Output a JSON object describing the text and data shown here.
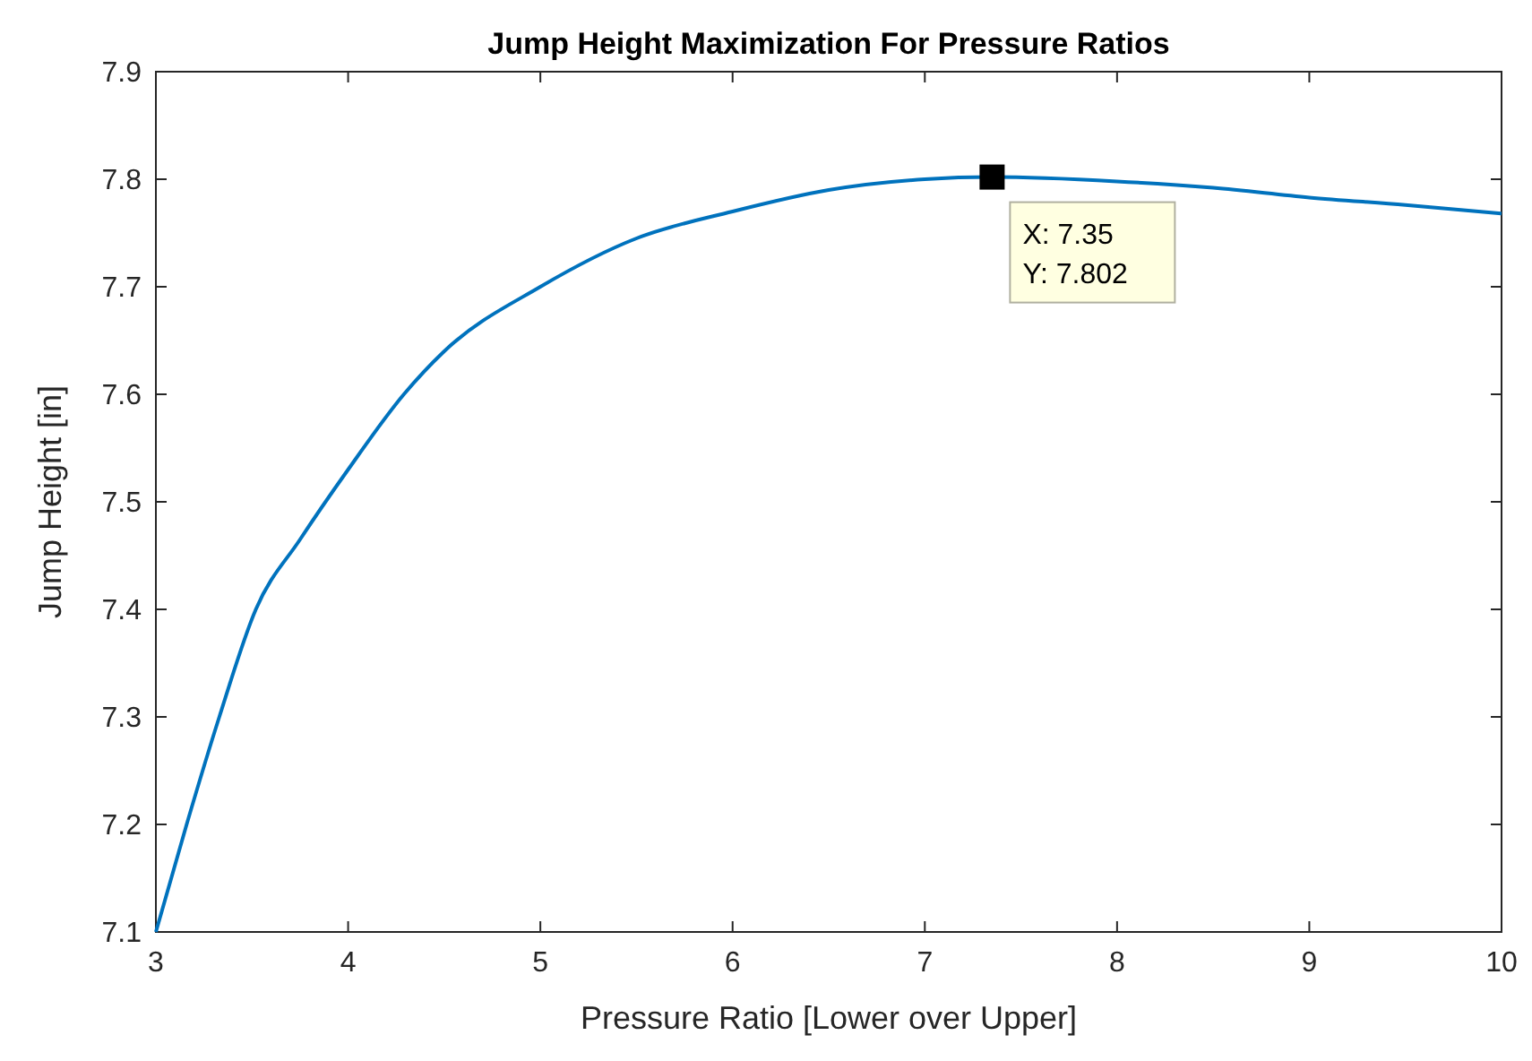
{
  "chart_data": {
    "type": "line",
    "title": "Jump Height Maximization For Pressure Ratios",
    "xlabel": "Pressure Ratio [Lower over Upper]",
    "ylabel": "Jump Height [in]",
    "x": [
      3,
      3.16,
      3.33,
      3.52,
      3.75,
      4,
      4.29,
      4.5,
      5,
      5.5,
      6,
      6.5,
      7,
      7.35,
      8,
      8.5,
      9,
      9.5,
      10
    ],
    "series": [
      {
        "color": "#0072bd",
        "values": [
          7.1,
          7.2,
          7.3,
          7.4,
          7.465,
          7.53,
          7.6,
          7.64,
          7.7,
          7.745,
          7.77,
          7.79,
          7.8,
          7.802,
          7.798,
          7.792,
          7.783,
          7.776,
          7.768
        ]
      }
    ],
    "xlim": [
      3,
      10
    ],
    "xticks": [
      3,
      4,
      5,
      6,
      7,
      8,
      9,
      10
    ],
    "ylim": [
      7.1,
      7.9
    ],
    "yticks": [
      7.1,
      7.2,
      7.3,
      7.4,
      7.5,
      7.6,
      7.7,
      7.8,
      7.9
    ],
    "grid": false,
    "marker": "none",
    "line_style": "solid",
    "annotations": [
      {
        "text": "X: 7.35\nY: 7.802",
        "x": 7.35,
        "y": 7.802
      }
    ]
  }
}
